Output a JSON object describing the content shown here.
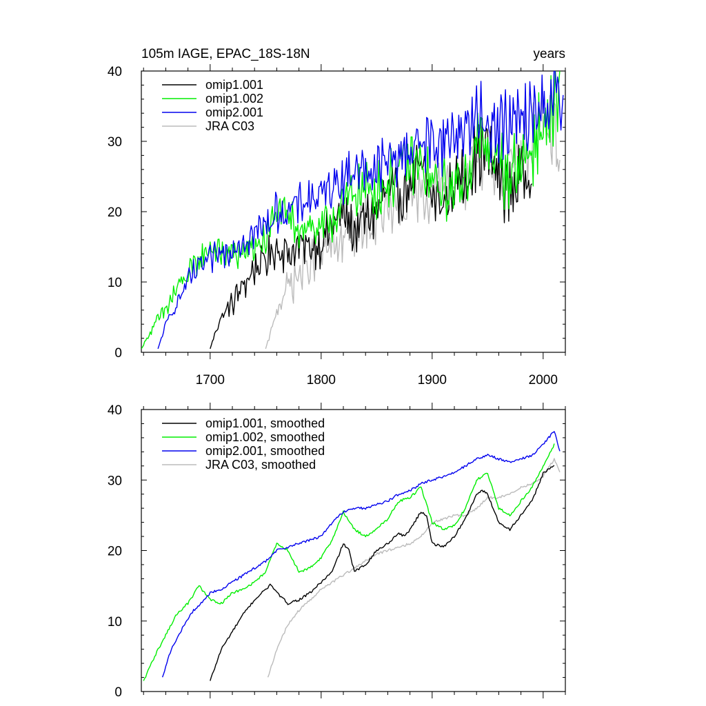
{
  "chart_data": [
    {
      "type": "line",
      "title": "105m IAGE, EPAC_18S-18N",
      "units": "years",
      "xlim": [
        1638,
        2020
      ],
      "ylim": [
        0,
        40
      ],
      "x_ticks": [
        1700,
        1800,
        1900,
        2000
      ],
      "x_tick_labels": [
        "1700",
        "1800",
        "1900",
        "2000"
      ],
      "y_ticks": [
        0,
        10,
        20,
        30,
        40
      ],
      "y_tick_labels": [
        "0",
        "10",
        "20",
        "30",
        "40"
      ],
      "legend_position": "top-left",
      "series": [
        {
          "name": "omip1.001",
          "color": "#000000",
          "start": 1700,
          "end": 1990,
          "x": [
            1700,
            1705,
            1710,
            1720,
            1730,
            1740,
            1750,
            1760,
            1770,
            1780,
            1790,
            1800,
            1810,
            1820,
            1830,
            1840,
            1850,
            1860,
            1870,
            1880,
            1890,
            1900,
            1910,
            1920,
            1930,
            1940,
            1950,
            1960,
            1970,
            1980,
            1990
          ],
          "y": [
            0.5,
            3,
            5,
            7,
            9.5,
            12,
            13,
            15,
            14,
            15,
            15,
            15.5,
            18,
            20,
            17,
            19,
            20,
            23,
            22,
            24,
            26,
            22,
            21,
            24,
            25,
            28,
            29,
            25,
            23,
            25,
            27
          ]
        },
        {
          "name": "omip1.002",
          "color": "#00ee00",
          "start": 1638,
          "end": 2015,
          "x": [
            1638,
            1650,
            1660,
            1670,
            1680,
            1690,
            1700,
            1710,
            1720,
            1730,
            1740,
            1750,
            1760,
            1770,
            1780,
            1790,
            1800,
            1810,
            1820,
            1830,
            1840,
            1850,
            1860,
            1870,
            1880,
            1890,
            1900,
            1910,
            1920,
            1930,
            1940,
            1950,
            1960,
            1970,
            1980,
            1990,
            2000,
            2010,
            2015
          ],
          "y": [
            0.5,
            4,
            6,
            9,
            11,
            13,
            15,
            14,
            14,
            14,
            15,
            16,
            20,
            19,
            18,
            18,
            17,
            19,
            21,
            23,
            23,
            23,
            24,
            26,
            27,
            26,
            24,
            23,
            23,
            25,
            30,
            29,
            27,
            25,
            27,
            29,
            32,
            34,
            35
          ]
        },
        {
          "name": "omip2.001",
          "color": "#0000ee",
          "start": 1653,
          "end": 2018,
          "x": [
            1653,
            1660,
            1670,
            1680,
            1690,
            1700,
            1710,
            1720,
            1730,
            1740,
            1750,
            1760,
            1770,
            1780,
            1790,
            1800,
            1810,
            1820,
            1830,
            1840,
            1850,
            1860,
            1870,
            1880,
            1890,
            1900,
            1910,
            1920,
            1930,
            1940,
            1950,
            1960,
            1970,
            1980,
            1990,
            2000,
            2010,
            2018
          ],
          "y": [
            0.5,
            4,
            7,
            10,
            12,
            13,
            14,
            15,
            16,
            17,
            18,
            20,
            20,
            21,
            22,
            22,
            24,
            25,
            26,
            26,
            26,
            27,
            28,
            29,
            30,
            30,
            30,
            31,
            32,
            33,
            33,
            32,
            32,
            33,
            33,
            35,
            37,
            34
          ]
        },
        {
          "name": "JRA C03",
          "color": "#bbbbbb",
          "start": 1750,
          "end": 2015,
          "x": [
            1750,
            1755,
            1760,
            1770,
            1780,
            1790,
            1800,
            1810,
            1820,
            1830,
            1840,
            1850,
            1860,
            1870,
            1880,
            1890,
            1900,
            1910,
            1920,
            1930,
            1940,
            1950,
            1960,
            1970,
            1980,
            1990,
            2000,
            2010,
            2015
          ],
          "y": [
            0.5,
            3,
            6,
            9.5,
            11,
            12.5,
            14,
            15,
            16,
            17,
            18,
            19,
            20,
            20,
            21,
            22,
            23,
            24,
            24,
            25,
            26,
            27,
            27,
            28,
            29,
            30,
            31,
            33,
            28
          ]
        }
      ]
    },
    {
      "type": "line",
      "title": "",
      "xlim": [
        1638,
        2020
      ],
      "ylim": [
        0,
        40
      ],
      "x_ticks": [
        1700,
        1800,
        1900,
        2000
      ],
      "y_ticks": [
        0,
        10,
        20,
        30,
        40
      ],
      "y_tick_labels": [
        "0",
        "10",
        "20",
        "30",
        "40"
      ],
      "legend_position": "top-left",
      "series": [
        {
          "name": "omip1.001, smoothed",
          "color": "#000000",
          "x": [
            1700,
            1710,
            1720,
            1730,
            1740,
            1750,
            1755,
            1760,
            1770,
            1775,
            1780,
            1790,
            1800,
            1810,
            1815,
            1820,
            1825,
            1830,
            1840,
            1850,
            1860,
            1870,
            1875,
            1880,
            1890,
            1895,
            1900,
            1910,
            1920,
            1930,
            1940,
            1945,
            1950,
            1960,
            1970,
            1975,
            1980,
            1990,
            2000,
            2010
          ],
          "y": [
            1.5,
            6,
            8.5,
            11,
            13,
            14.5,
            15.2,
            14,
            12.5,
            12.8,
            13,
            14,
            15.5,
            17,
            19,
            21,
            20,
            17,
            18,
            20,
            21,
            22.5,
            22,
            23,
            25.5,
            25,
            21,
            20.5,
            22,
            24.5,
            28,
            28.5,
            28,
            24,
            23,
            24,
            25,
            27,
            31,
            32
          ]
        },
        {
          "name": "omip1.002, smoothed",
          "color": "#00ee00",
          "x": [
            1640,
            1650,
            1660,
            1670,
            1680,
            1690,
            1700,
            1710,
            1720,
            1730,
            1740,
            1750,
            1760,
            1770,
            1780,
            1790,
            1800,
            1810,
            1820,
            1830,
            1840,
            1850,
            1860,
            1870,
            1880,
            1890,
            1900,
            1910,
            1920,
            1930,
            1940,
            1950,
            1960,
            1970,
            1980,
            1990,
            2000,
            2010
          ],
          "y": [
            1.5,
            5,
            8,
            11,
            12.5,
            15,
            13,
            12.5,
            14,
            14.5,
            15.5,
            17,
            21,
            20,
            17,
            17.5,
            19,
            21.5,
            25.5,
            23,
            22,
            23,
            24.5,
            27,
            27.5,
            29,
            24,
            23,
            23.5,
            26,
            30,
            31,
            26,
            25,
            27,
            29,
            32,
            35
          ]
        },
        {
          "name": "omip2.001, smoothed",
          "color": "#0000ee",
          "x": [
            1657,
            1665,
            1675,
            1685,
            1695,
            1700,
            1710,
            1720,
            1730,
            1740,
            1750,
            1760,
            1770,
            1780,
            1790,
            1800,
            1810,
            1820,
            1830,
            1840,
            1850,
            1860,
            1870,
            1880,
            1890,
            1900,
            1910,
            1920,
            1930,
            1940,
            1950,
            1960,
            1970,
            1980,
            1990,
            2000,
            2010,
            2015
          ],
          "y": [
            2,
            6,
            9,
            11.5,
            13,
            14,
            14.5,
            15.5,
            16.5,
            17.5,
            18.5,
            20,
            20.5,
            21,
            21.5,
            22,
            24,
            25.5,
            26,
            26,
            26.5,
            27,
            28,
            28.5,
            29.5,
            30,
            30.5,
            31,
            32,
            33,
            33.5,
            33,
            32.5,
            33,
            33.5,
            35,
            37,
            34
          ]
        },
        {
          "name": "JRA C03, smoothed",
          "color": "#bbbbbb",
          "x": [
            1752,
            1760,
            1770,
            1780,
            1790,
            1800,
            1810,
            1820,
            1830,
            1840,
            1850,
            1860,
            1870,
            1880,
            1890,
            1900,
            1910,
            1920,
            1930,
            1940,
            1950,
            1960,
            1970,
            1980,
            1990,
            2000,
            2010,
            2015
          ],
          "y": [
            2,
            6,
            9.5,
            11.5,
            13,
            14.5,
            15.5,
            16.5,
            17.5,
            18.5,
            19.5,
            20,
            20.5,
            21,
            22,
            24,
            24.5,
            25,
            25,
            26,
            27.5,
            27.5,
            28,
            29,
            29.5,
            30.5,
            33,
            31
          ]
        }
      ]
    }
  ]
}
